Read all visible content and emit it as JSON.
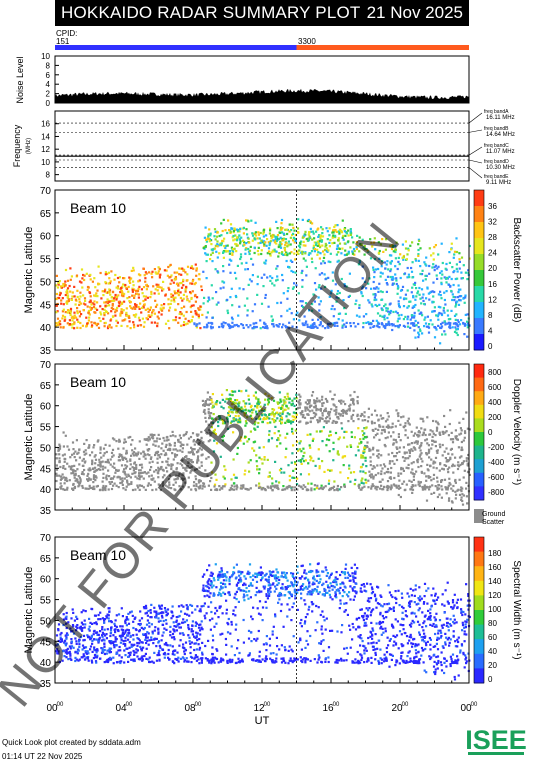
{
  "header": {
    "title": "HOKKAIDO RADAR SUMMARY PLOT",
    "date": "21 Nov 2025"
  },
  "cpid": {
    "label": "CPID:",
    "values": [
      "151",
      "3300"
    ]
  },
  "noise": {
    "ylabel": "Noise Level",
    "ticks": [
      "0",
      "2",
      "4",
      "6",
      "8",
      "10"
    ]
  },
  "freq": {
    "ylabel": "Frequency",
    "unit": "(MHz)",
    "ticks": [
      "8",
      "10",
      "12",
      "14",
      "16"
    ],
    "bands": [
      {
        "name": "freq bandA",
        "value": "16.11 MHz"
      },
      {
        "name": "freq bandB",
        "value": "14.64 MHz"
      },
      {
        "name": "freq bandC",
        "value": "11.07 MHz"
      },
      {
        "name": "freq bandD",
        "value": "10.30 MHz"
      },
      {
        "name": "freq bandE",
        "value": "9.11 MHz"
      }
    ]
  },
  "watermark": "NOT FOR PUBLICATION",
  "xaxis": {
    "label": "UT",
    "ticks": [
      "00",
      "04",
      "08",
      "12",
      "16",
      "20",
      "00"
    ],
    "sup": "00"
  },
  "chart_data": [
    {
      "type": "heatmap",
      "title": "Beam 10",
      "ylabel": "Magnetic Latitude",
      "ylim": [
        35,
        70
      ],
      "yticks": [
        "35",
        "40",
        "45",
        "50",
        "55",
        "60",
        "65",
        "70"
      ],
      "xlim": [
        0,
        24
      ],
      "colorbar": {
        "label": "Backscatter Power (dB)",
        "ticks": [
          "0",
          "4",
          "8",
          "12",
          "16",
          "20",
          "24",
          "28",
          "32",
          "36"
        ]
      }
    },
    {
      "type": "heatmap",
      "title": "Beam 10",
      "ylabel": "Magnetic Latitude",
      "ylim": [
        35,
        70
      ],
      "yticks": [
        "35",
        "40",
        "45",
        "50",
        "55",
        "60",
        "65",
        "70"
      ],
      "xlim": [
        0,
        24
      ],
      "colorbar": {
        "label": "Doppler Velocity (m s⁻¹)",
        "ticks": [
          "800",
          "600",
          "400",
          "200",
          "0",
          "-200",
          "-400",
          "-600",
          "-800"
        ]
      },
      "ground_scatter_label": "Ground Scatter"
    },
    {
      "type": "heatmap",
      "title": "Beam 10",
      "ylabel": "Magnetic Latitude",
      "ylim": [
        35,
        70
      ],
      "yticks": [
        "35",
        "40",
        "45",
        "50",
        "55",
        "60",
        "65",
        "70"
      ],
      "xlim": [
        0,
        24
      ],
      "colorbar": {
        "label": "Spectral Width (m s⁻¹)",
        "ticks": [
          "0",
          "20",
          "40",
          "60",
          "80",
          "100",
          "120",
          "140",
          "160",
          "180"
        ]
      }
    }
  ],
  "footer": {
    "line1": "Quick Look plot created by sddata.adm",
    "line2": "01:14 UT 22 Nov 2025"
  },
  "logo": {
    "text": "ISEE"
  },
  "colors": {
    "cpid1": "#3030ff",
    "cpid2": "#ff5a1e",
    "ground": "#8c8c8c"
  }
}
